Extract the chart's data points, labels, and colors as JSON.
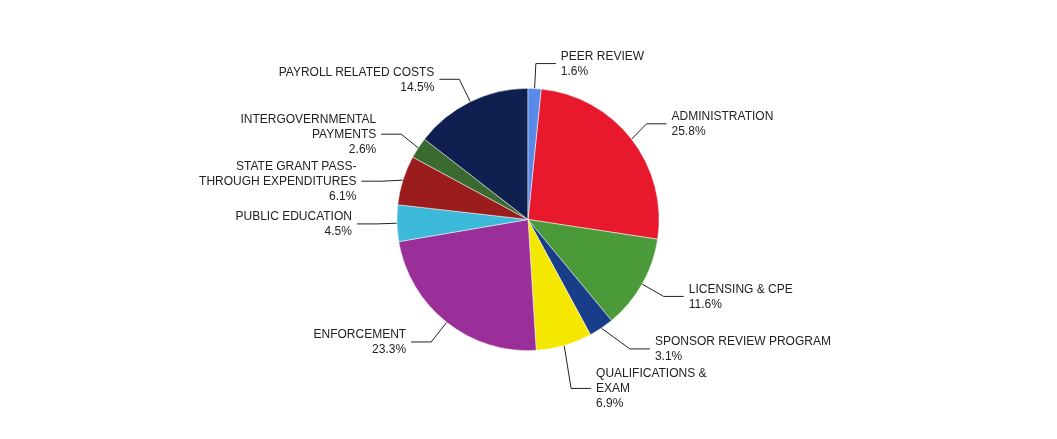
{
  "chart_data": {
    "type": "pie",
    "categories": [
      "ADMINISTRATION",
      "LICENSING & CPE",
      "SPONSOR REVIEW PROGRAM",
      "QUALIFICATIONS &\nEXAM",
      "ENFORCEMENT",
      "PUBLIC EDUCATION",
      "STATE GRANT PASS-\nTHROUGH EXPENDITURES",
      "INTERGOVERNMENTAL\nPAYMENTS",
      "PAYROLL RELATED COSTS",
      "PEER REVIEW"
    ],
    "values": [
      25.8,
      11.6,
      3.1,
      6.9,
      23.3,
      4.5,
      6.1,
      2.6,
      14.5,
      1.6
    ],
    "colors": [
      "#e8192c",
      "#4a9a3a",
      "#1a3d8a",
      "#f5e800",
      "#9a2f9a",
      "#3cb8d8",
      "#9a1c1c",
      "#3a6a30",
      "#0f2050",
      "#5a8ae8"
    ],
    "value_labels": [
      "25.8%",
      "11.6%",
      "3.1%",
      "6.9%",
      "23.3%",
      "4.5%",
      "6.1%",
      "2.6%",
      "14.5%",
      "1.6%"
    ],
    "legend": false
  }
}
